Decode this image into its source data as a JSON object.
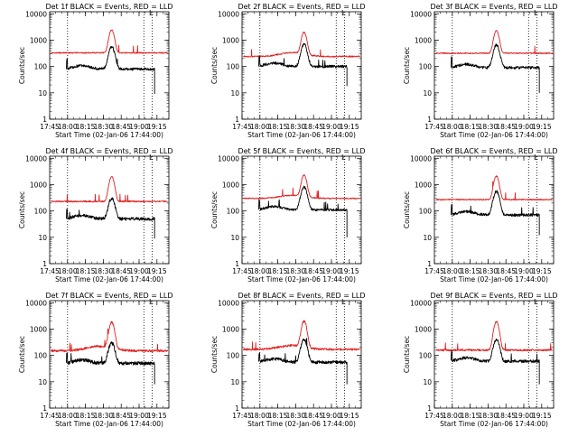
{
  "figure": {
    "background": "#ffffff",
    "event_color": "#000000",
    "lld_color": "#e0201e"
  },
  "chart_data": [
    {
      "type": "line",
      "title": "Det 1f BLACK = Events, RED = LLD",
      "xlabel": "Start Time (02-Jan-06 17:44:00)",
      "ylabel": "Counts/sec",
      "x_ticks": [
        "17:45",
        "18:00",
        "18:15",
        "18:30",
        "18:45",
        "19:00",
        "19:15"
      ],
      "y_ticks": [
        "1",
        "10",
        "100",
        "1000",
        "10000"
      ],
      "y_scale": "log",
      "ylim": [
        1,
        12000
      ],
      "xlim": [
        "17:45",
        "19:25"
      ],
      "vlines": [
        "18:00",
        "19:04",
        "19:11"
      ],
      "corner_mark": "L",
      "series": [
        {
          "role": "LLD",
          "color": "#e0201e",
          "t_start": "17:46",
          "t_end": "19:24",
          "baseline": 330,
          "peak": 2400,
          "peak_time": "18:37",
          "peak_width_min": 2.6,
          "noise": 0.05,
          "drift": 0.0
        },
        {
          "role": "Events",
          "color": "#000000",
          "t_start": "17:59",
          "t_end": "19:13",
          "baseline": 80,
          "peak": 550,
          "peak_time": "18:37",
          "peak_width_min": 3.0,
          "noise": 0.12,
          "drift": 0.0,
          "end_drop": 9
        }
      ]
    },
    {
      "type": "line",
      "title": "Det 2f BLACK = Events, RED = LLD",
      "xlabel": "Start Time (02-Jan-06 17:44:00)",
      "ylabel": "Counts/sec",
      "x_ticks": [
        "17:45",
        "18:00",
        "18:15",
        "18:30",
        "18:45",
        "19:00",
        "19:15"
      ],
      "y_ticks": [
        "1",
        "10",
        "100",
        "1000",
        "10000"
      ],
      "y_scale": "log",
      "ylim": [
        1,
        12000
      ],
      "xlim": [
        "17:45",
        "19:25"
      ],
      "vlines": [
        "18:00",
        "19:04",
        "19:11"
      ],
      "corner_mark": "L",
      "series": [
        {
          "role": "LLD",
          "color": "#e0201e",
          "t_start": "17:46",
          "t_end": "19:24",
          "baseline": 240,
          "peak": 2000,
          "peak_time": "18:37",
          "peak_width_min": 2.6,
          "noise": 0.06,
          "hump": 1.4
        },
        {
          "role": "Events",
          "color": "#000000",
          "t_start": "17:59",
          "t_end": "19:13",
          "baseline": 100,
          "peak": 700,
          "peak_time": "18:37",
          "peak_width_min": 3.0,
          "noise": 0.12,
          "end_drop": 18
        }
      ]
    },
    {
      "type": "line",
      "title": "Det 3f BLACK = Events, RED = LLD",
      "xlabel": "Start Time (02-Jan-06 17:44:00)",
      "ylabel": "Counts/sec",
      "x_ticks": [
        "17:45",
        "18:00",
        "18:15",
        "18:30",
        "18:45",
        "19:00",
        "19:15"
      ],
      "y_ticks": [
        "1",
        "10",
        "100",
        "1000",
        "10000"
      ],
      "y_scale": "log",
      "ylim": [
        1,
        12000
      ],
      "xlim": [
        "17:45",
        "19:25"
      ],
      "vlines": [
        "18:00",
        "19:04",
        "19:11"
      ],
      "corner_mark": "L",
      "series": [
        {
          "role": "LLD",
          "color": "#e0201e",
          "t_start": "17:46",
          "t_end": "19:24",
          "baseline": 320,
          "peak": 2300,
          "peak_time": "18:37",
          "peak_width_min": 2.6,
          "noise": 0.05
        },
        {
          "role": "Events",
          "color": "#000000",
          "t_start": "17:59",
          "t_end": "19:13",
          "baseline": 90,
          "peak": 650,
          "peak_time": "18:37",
          "peak_width_min": 3.0,
          "noise": 0.12,
          "end_drop": 10
        }
      ]
    },
    {
      "type": "line",
      "title": "Det 4f BLACK = Events, RED = LLD",
      "xlabel": "Start Time (02-Jan-06 17:44:00)",
      "ylabel": "Counts/sec",
      "x_ticks": [
        "17:45",
        "18:00",
        "18:15",
        "18:30",
        "18:45",
        "19:00",
        "19:15"
      ],
      "y_ticks": [
        "1",
        "10",
        "100",
        "1000",
        "10000"
      ],
      "y_scale": "log",
      "ylim": [
        1,
        12000
      ],
      "xlim": [
        "17:45",
        "19:25"
      ],
      "vlines": [
        "18:00",
        "19:04",
        "19:11"
      ],
      "corner_mark": "L",
      "series": [
        {
          "role": "LLD",
          "color": "#e0201e",
          "t_start": "17:46",
          "t_end": "19:24",
          "baseline": 230,
          "peak": 2000,
          "peak_time": "18:37",
          "peak_width_min": 2.6,
          "noise": 0.06
        },
        {
          "role": "Events",
          "color": "#000000",
          "t_start": "17:59",
          "t_end": "19:13",
          "baseline": 50,
          "peak": 300,
          "peak_time": "18:37",
          "peak_width_min": 3.0,
          "noise": 0.14,
          "end_drop": 9
        }
      ]
    },
    {
      "type": "line",
      "title": "Det 5f BLACK = Events, RED = LLD",
      "xlabel": "Start Time (02-Jan-06 17:44:00)",
      "ylabel": "Counts/sec",
      "x_ticks": [
        "17:45",
        "18:00",
        "18:15",
        "18:30",
        "18:45",
        "19:00",
        "19:15"
      ],
      "y_ticks": [
        "1",
        "10",
        "100",
        "1000",
        "10000"
      ],
      "y_scale": "log",
      "ylim": [
        1,
        12000
      ],
      "xlim": [
        "17:45",
        "19:25"
      ],
      "vlines": [
        "18:00",
        "19:04",
        "19:11"
      ],
      "corner_mark": "L",
      "series": [
        {
          "role": "LLD",
          "color": "#e0201e",
          "t_start": "17:46",
          "t_end": "19:24",
          "baseline": 300,
          "peak": 2300,
          "peak_time": "18:37",
          "peak_width_min": 2.6,
          "noise": 0.05,
          "hump": 1.3
        },
        {
          "role": "Events",
          "color": "#000000",
          "t_start": "17:59",
          "t_end": "19:13",
          "baseline": 110,
          "peak": 800,
          "peak_time": "18:37",
          "peak_width_min": 3.0,
          "noise": 0.1,
          "end_drop": 10
        }
      ]
    },
    {
      "type": "line",
      "title": "Det 6f BLACK = Events, RED = LLD",
      "xlabel": "Start Time (02-Jan-06 17:44:00)",
      "ylabel": "Counts/sec",
      "x_ticks": [
        "17:45",
        "18:00",
        "18:15",
        "18:30",
        "18:45",
        "19:00",
        "19:15"
      ],
      "y_ticks": [
        "1",
        "10",
        "100",
        "1000",
        "10000"
      ],
      "y_scale": "log",
      "ylim": [
        1,
        12000
      ],
      "xlim": [
        "17:45",
        "19:25"
      ],
      "vlines": [
        "18:00",
        "19:04",
        "19:11"
      ],
      "corner_mark": "L",
      "series": [
        {
          "role": "LLD",
          "color": "#e0201e",
          "t_start": "17:46",
          "t_end": "19:24",
          "baseline": 270,
          "peak": 2100,
          "peak_time": "18:37",
          "peak_width_min": 2.6,
          "noise": 0.05
        },
        {
          "role": "Events",
          "color": "#000000",
          "t_start": "17:59",
          "t_end": "19:13",
          "baseline": 70,
          "peak": 550,
          "peak_time": "18:37",
          "peak_width_min": 3.0,
          "noise": 0.12,
          "end_drop": 12
        }
      ]
    },
    {
      "type": "line",
      "title": "Det 7f BLACK = Events, RED = LLD",
      "xlabel": "Start Time (02-Jan-06 17:44:00)",
      "ylabel": "Counts/sec",
      "x_ticks": [
        "17:45",
        "18:00",
        "18:15",
        "18:30",
        "18:45",
        "19:00",
        "19:15"
      ],
      "y_ticks": [
        "1",
        "10",
        "100",
        "1000",
        "10000"
      ],
      "y_scale": "log",
      "ylim": [
        1,
        12000
      ],
      "xlim": [
        "17:45",
        "19:25"
      ],
      "vlines": [
        "18:00",
        "19:04",
        "19:11"
      ],
      "corner_mark": "L",
      "series": [
        {
          "role": "LLD",
          "color": "#e0201e",
          "t_start": "17:46",
          "t_end": "19:24",
          "baseline": 150,
          "peak": 1800,
          "peak_time": "18:37",
          "peak_width_min": 2.6,
          "noise": 0.1,
          "hump": 1.5
        },
        {
          "role": "Events",
          "color": "#000000",
          "t_start": "17:59",
          "t_end": "19:13",
          "baseline": 50,
          "peak": 300,
          "peak_time": "18:37",
          "peak_width_min": 3.0,
          "noise": 0.16,
          "end_drop": 8
        }
      ]
    },
    {
      "type": "line",
      "title": "Det 8f BLACK = Events, RED = LLD",
      "xlabel": "Start Time (02-Jan-06 17:44:00)",
      "ylabel": "Counts/sec",
      "x_ticks": [
        "17:45",
        "18:00",
        "18:15",
        "18:30",
        "18:45",
        "19:00",
        "19:15"
      ],
      "y_ticks": [
        "1",
        "10",
        "100",
        "1000",
        "10000"
      ],
      "y_scale": "log",
      "ylim": [
        1,
        12000
      ],
      "xlim": [
        "17:45",
        "19:25"
      ],
      "vlines": [
        "18:00",
        "19:04",
        "19:11"
      ],
      "corner_mark": "L",
      "series": [
        {
          "role": "LLD",
          "color": "#e0201e",
          "t_start": "17:46",
          "t_end": "19:24",
          "baseline": 170,
          "peak": 2000,
          "peak_time": "18:37",
          "peak_width_min": 2.6,
          "noise": 0.09,
          "hump": 1.4
        },
        {
          "role": "Events",
          "color": "#000000",
          "t_start": "17:59",
          "t_end": "19:13",
          "baseline": 55,
          "peak": 400,
          "peak_time": "18:37",
          "peak_width_min": 3.0,
          "noise": 0.14,
          "end_drop": 8
        }
      ]
    },
    {
      "type": "line",
      "title": "Det 9f BLACK = Events, RED = LLD",
      "xlabel": "Start Time (02-Jan-06 17:44:00)",
      "ylabel": "Counts/sec",
      "x_ticks": [
        "17:45",
        "18:00",
        "18:15",
        "18:30",
        "18:45",
        "19:00",
        "19:15"
      ],
      "y_ticks": [
        "1",
        "10",
        "100",
        "1000",
        "10000"
      ],
      "y_scale": "log",
      "ylim": [
        1,
        12000
      ],
      "xlim": [
        "17:45",
        "19:25"
      ],
      "vlines": [
        "18:00",
        "19:04",
        "19:11"
      ],
      "corner_mark": "L",
      "series": [
        {
          "role": "LLD",
          "color": "#e0201e",
          "t_start": "17:46",
          "t_end": "19:24",
          "baseline": 160,
          "peak": 1900,
          "peak_time": "18:37",
          "peak_width_min": 2.6,
          "noise": 0.08
        },
        {
          "role": "Events",
          "color": "#000000",
          "t_start": "17:59",
          "t_end": "19:13",
          "baseline": 60,
          "peak": 400,
          "peak_time": "18:37",
          "peak_width_min": 3.0,
          "noise": 0.13,
          "end_drop": 8
        }
      ]
    }
  ]
}
